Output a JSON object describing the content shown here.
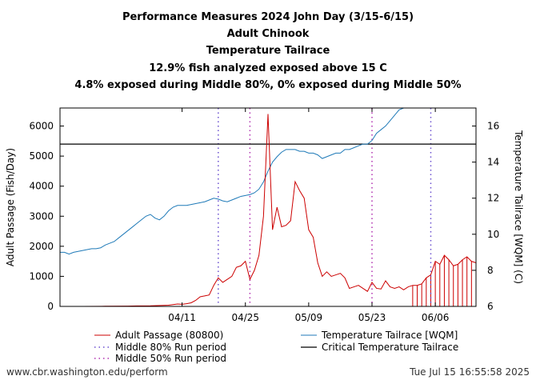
{
  "title_lines": [
    "Performance Measures 2024 John Day (3/15-6/15)",
    "Adult Chinook",
    "Temperature Tailrace",
    "12.9% fish analyzed exposed above 15 C",
    "4.8% exposed during Middle 80%, 0% exposed during Middle 50%"
  ],
  "footer": {
    "left": "www.cbr.washington.edu/perform",
    "right": "Tue Jul 15 16:55:58 2025"
  },
  "colors": {
    "passage": "#cc0000",
    "temperature": "#1f7ab8",
    "critical": "#000000",
    "middle80": "#6a4fcf",
    "middle50": "#b02fb0"
  },
  "chart_data": {
    "type": "line",
    "x_range": [
      0,
      92
    ],
    "x_ticks": [
      {
        "day": 27,
        "label": "04/11"
      },
      {
        "day": 41,
        "label": "04/25"
      },
      {
        "day": 55,
        "label": "05/09"
      },
      {
        "day": 69,
        "label": "05/23"
      },
      {
        "day": 83,
        "label": "06/06"
      }
    ],
    "y_left": {
      "label": "Adult Passage (Fish/Day)",
      "range": [
        0,
        6600
      ],
      "ticks": [
        0,
        1000,
        2000,
        3000,
        4000,
        5000,
        6000
      ]
    },
    "y_right": {
      "label": "Temperature Tailrace [WQM] (C)",
      "range": [
        6,
        17
      ],
      "ticks": [
        6,
        8,
        10,
        12,
        14,
        16
      ]
    },
    "series": [
      {
        "name": "Adult Passage (80800)",
        "axis": "left",
        "days": [
          0,
          5,
          10,
          15,
          17,
          20,
          22,
          24,
          25,
          26,
          27,
          28,
          29,
          30,
          31,
          32,
          33,
          34,
          35,
          36,
          37,
          38,
          39,
          40,
          41,
          42,
          43,
          44,
          45,
          46,
          47,
          48,
          49,
          50,
          51,
          52,
          53,
          54,
          55,
          56,
          57,
          58,
          59,
          60,
          61,
          62,
          63,
          64,
          65,
          66,
          67,
          68,
          69,
          70,
          71,
          72,
          73,
          74,
          75,
          76,
          77,
          78,
          79,
          80,
          81,
          82,
          83,
          84,
          85,
          86,
          87,
          88,
          89,
          90,
          91,
          92
        ],
        "values": [
          0,
          0,
          5,
          10,
          15,
          20,
          30,
          40,
          60,
          80,
          70,
          90,
          120,
          200,
          320,
          350,
          380,
          700,
          950,
          800,
          900,
          1000,
          1300,
          1350,
          1500,
          900,
          1200,
          1700,
          3000,
          6400,
          2550,
          3300,
          2650,
          2700,
          2850,
          4150,
          3850,
          3600,
          2550,
          2300,
          1450,
          1000,
          1150,
          1000,
          1050,
          1100,
          950,
          600,
          650,
          700,
          600,
          500,
          800,
          600,
          580,
          850,
          650,
          600,
          650,
          550,
          650,
          700,
          700,
          750,
          950,
          1050,
          1500,
          1400,
          1700,
          1550,
          1350,
          1400,
          1550,
          1650,
          1500,
          1450
        ]
      },
      {
        "name": "Temperature Tailrace [WQM]",
        "axis": "right",
        "days": [
          0,
          1,
          2,
          3,
          4,
          5,
          6,
          7,
          8,
          9,
          10,
          11,
          12,
          13,
          14,
          15,
          16,
          17,
          18,
          19,
          20,
          21,
          22,
          23,
          24,
          25,
          26,
          27,
          28,
          29,
          30,
          31,
          32,
          33,
          34,
          35,
          36,
          37,
          38,
          39,
          40,
          41,
          42,
          43,
          44,
          45,
          46,
          47,
          48,
          49,
          50,
          51,
          52,
          53,
          54,
          55,
          56,
          57,
          58,
          59,
          60,
          61,
          62,
          63,
          64,
          65,
          66,
          67,
          68,
          69,
          70,
          71,
          72,
          73,
          74,
          75,
          76,
          77,
          78,
          79,
          80,
          81,
          82,
          83,
          84,
          85,
          86,
          87,
          88,
          89,
          90,
          91,
          92
        ],
        "values": [
          9.0,
          9.0,
          8.9,
          9.0,
          9.05,
          9.1,
          9.15,
          9.2,
          9.2,
          9.25,
          9.4,
          9.5,
          9.6,
          9.8,
          10.0,
          10.2,
          10.4,
          10.6,
          10.8,
          11.0,
          11.1,
          10.9,
          10.8,
          11.0,
          11.3,
          11.5,
          11.6,
          11.6,
          11.6,
          11.65,
          11.7,
          11.75,
          11.8,
          11.9,
          12.0,
          11.95,
          11.85,
          11.8,
          11.9,
          12.0,
          12.1,
          12.15,
          12.2,
          12.3,
          12.5,
          12.9,
          13.5,
          14.0,
          14.3,
          14.55,
          14.7,
          14.7,
          14.7,
          14.6,
          14.6,
          14.5,
          14.5,
          14.4,
          14.2,
          14.3,
          14.4,
          14.5,
          14.5,
          14.7,
          14.7,
          14.8,
          14.9,
          15.0,
          15.0,
          15.2,
          15.6,
          15.8,
          16.0,
          16.3,
          16.6,
          16.9,
          17.0,
          17.0,
          17.0,
          17.0,
          17.0,
          17.0,
          17.0,
          17.0,
          17.0,
          17.0,
          17.0,
          17.0,
          17.0,
          17.0,
          17.0,
          17.0,
          17.0
        ]
      }
    ],
    "critical_temperature": 15,
    "middle80": [
      35,
      82
    ],
    "middle50": [
      42,
      69
    ],
    "exceedance_days": [
      78,
      79,
      80,
      81,
      82,
      83,
      84,
      85,
      86,
      87,
      88,
      89,
      90,
      91,
      92
    ]
  },
  "legend": {
    "passage": "Adult Passage (80800)",
    "temperature": "Temperature Tailrace [WQM]",
    "middle80": "Middle 80% Run period",
    "critical": "Critical Temperature Tailrace",
    "middle50": "Middle 50% Run period"
  }
}
